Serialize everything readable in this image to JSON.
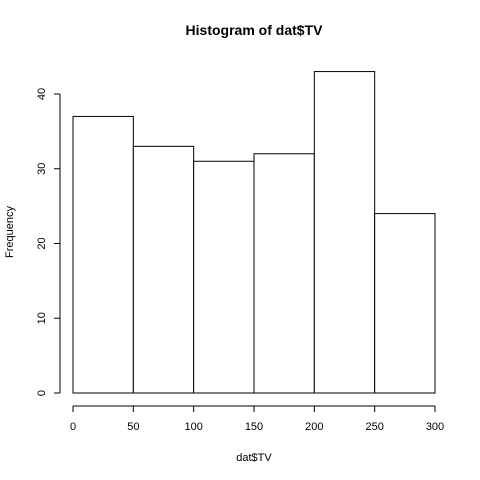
{
  "chart_data": {
    "type": "bar",
    "title": "Histogram of dat$TV",
    "xlabel": "dat$TV",
    "ylabel": "Frequency",
    "bins": [
      [
        0,
        50
      ],
      [
        50,
        100
      ],
      [
        100,
        150
      ],
      [
        150,
        200
      ],
      [
        200,
        250
      ],
      [
        250,
        300
      ]
    ],
    "values": [
      37,
      33,
      31,
      32,
      43,
      24
    ],
    "xlim": [
      0,
      300
    ],
    "ylim": [
      0,
      45
    ],
    "xticks": [
      0,
      50,
      100,
      150,
      200,
      250,
      300
    ],
    "yticks": [
      0,
      10,
      20,
      30,
      40
    ],
    "grid": false,
    "bar_fill": "#ffffff",
    "bar_stroke": "#000000"
  }
}
